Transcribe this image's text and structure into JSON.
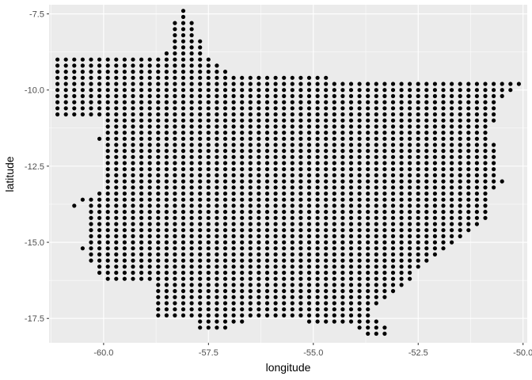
{
  "chart_data": {
    "type": "scatter",
    "xlabel": "longitude",
    "ylabel": "latitude",
    "xlim": [
      -61.3,
      -49.9
    ],
    "ylim": [
      -18.3,
      -7.2
    ],
    "x_ticks": [
      -60.0,
      -57.5,
      -55.0,
      -52.5,
      -50.0
    ],
    "x_tick_labels": [
      "-60.0",
      "-57.5",
      "-55.0",
      "-52.5",
      "-50.0"
    ],
    "y_ticks": [
      -7.5,
      -10.0,
      -12.5,
      -15.0,
      -17.5
    ],
    "y_tick_labels": [
      "-7.5",
      "-10.0",
      "-12.5",
      "-15.0",
      "-17.5"
    ],
    "grid": true,
    "panel_background": "#ebebeb",
    "grid_color": "#ffffff",
    "point_color": "#000000",
    "grid_step": 0.2,
    "rows": [
      {
        "lat": -7.4,
        "spans": [
          [
            -58.1,
            -58.1
          ]
        ]
      },
      {
        "lat": -7.6,
        "spans": [
          [
            -58.1,
            -58.1
          ]
        ]
      },
      {
        "lat": -7.8,
        "spans": [
          [
            -58.3,
            -57.9
          ]
        ]
      },
      {
        "lat": -8.0,
        "spans": [
          [
            -58.3,
            -57.9
          ]
        ]
      },
      {
        "lat": -8.2,
        "spans": [
          [
            -58.3,
            -57.9
          ]
        ]
      },
      {
        "lat": -8.4,
        "spans": [
          [
            -58.3,
            -57.7
          ]
        ]
      },
      {
        "lat": -8.6,
        "spans": [
          [
            -58.3,
            -57.7
          ]
        ]
      },
      {
        "lat": -8.8,
        "spans": [
          [
            -58.5,
            -57.7
          ]
        ]
      },
      {
        "lat": -9.0,
        "spans": [
          [
            -61.1,
            -57.5
          ]
        ]
      },
      {
        "lat": -9.2,
        "spans": [
          [
            -61.1,
            -57.3
          ]
        ]
      },
      {
        "lat": -9.4,
        "spans": [
          [
            -61.1,
            -57.1
          ]
        ]
      },
      {
        "lat": -9.6,
        "spans": [
          [
            -61.1,
            -54.7
          ]
        ]
      },
      {
        "lat": -9.8,
        "spans": [
          [
            -61.1,
            -50.1
          ]
        ]
      },
      {
        "lat": -10.0,
        "spans": [
          [
            -61.1,
            -50.3
          ]
        ]
      },
      {
        "lat": -10.2,
        "spans": [
          [
            -61.1,
            -50.5
          ]
        ]
      },
      {
        "lat": -10.4,
        "spans": [
          [
            -61.1,
            -50.7
          ]
        ]
      },
      {
        "lat": -10.6,
        "spans": [
          [
            -61.1,
            -50.7
          ]
        ]
      },
      {
        "lat": -10.8,
        "spans": [
          [
            -61.1,
            -50.7
          ]
        ]
      },
      {
        "lat": -11.0,
        "spans": [
          [
            -59.9,
            -50.7
          ]
        ]
      },
      {
        "lat": -11.2,
        "spans": [
          [
            -59.9,
            -50.9
          ]
        ]
      },
      {
        "lat": -11.4,
        "spans": [
          [
            -59.9,
            -50.9
          ]
        ]
      },
      {
        "lat": -11.6,
        "spans": [
          [
            -60.1,
            -50.9
          ]
        ]
      },
      {
        "lat": -11.8,
        "spans": [
          [
            -59.9,
            -50.7
          ]
        ]
      },
      {
        "lat": -12.0,
        "spans": [
          [
            -59.9,
            -50.7
          ]
        ]
      },
      {
        "lat": -12.2,
        "spans": [
          [
            -59.9,
            -50.7
          ]
        ]
      },
      {
        "lat": -12.4,
        "spans": [
          [
            -59.9,
            -50.7
          ]
        ]
      },
      {
        "lat": -12.6,
        "spans": [
          [
            -59.9,
            -50.7
          ]
        ]
      },
      {
        "lat": -12.8,
        "spans": [
          [
            -59.9,
            -50.7
          ]
        ]
      },
      {
        "lat": -13.0,
        "spans": [
          [
            -59.9,
            -50.5
          ]
        ]
      },
      {
        "lat": -13.2,
        "spans": [
          [
            -59.9,
            -50.7
          ]
        ]
      },
      {
        "lat": -13.4,
        "spans": [
          [
            -60.1,
            -50.9
          ]
        ]
      },
      {
        "lat": -13.6,
        "spans": [
          [
            -60.5,
            -50.9
          ]
        ]
      },
      {
        "lat": -13.8,
        "spans": [
          [
            -60.7,
            -60.7
          ],
          [
            -60.3,
            -50.9
          ]
        ]
      },
      {
        "lat": -14.0,
        "spans": [
          [
            -60.3,
            -50.9
          ]
        ]
      },
      {
        "lat": -14.2,
        "spans": [
          [
            -60.3,
            -50.9
          ]
        ]
      },
      {
        "lat": -14.4,
        "spans": [
          [
            -60.3,
            -51.1
          ]
        ]
      },
      {
        "lat": -14.6,
        "spans": [
          [
            -60.3,
            -51.3
          ]
        ]
      },
      {
        "lat": -14.8,
        "spans": [
          [
            -60.3,
            -51.5
          ]
        ]
      },
      {
        "lat": -15.0,
        "spans": [
          [
            -60.3,
            -51.7
          ]
        ]
      },
      {
        "lat": -15.2,
        "spans": [
          [
            -60.5,
            -51.9
          ]
        ]
      },
      {
        "lat": -15.4,
        "spans": [
          [
            -60.3,
            -52.1
          ]
        ]
      },
      {
        "lat": -15.6,
        "spans": [
          [
            -60.3,
            -52.3
          ]
        ]
      },
      {
        "lat": -15.8,
        "spans": [
          [
            -60.1,
            -52.5
          ]
        ]
      },
      {
        "lat": -16.0,
        "spans": [
          [
            -60.1,
            -52.7
          ]
        ]
      },
      {
        "lat": -16.2,
        "spans": [
          [
            -59.9,
            -52.7
          ]
        ]
      },
      {
        "lat": -16.4,
        "spans": [
          [
            -58.7,
            -52.9
          ]
        ]
      },
      {
        "lat": -16.6,
        "spans": [
          [
            -58.7,
            -53.1
          ]
        ]
      },
      {
        "lat": -16.8,
        "spans": [
          [
            -58.7,
            -53.3
          ]
        ]
      },
      {
        "lat": -17.0,
        "spans": [
          [
            -58.7,
            -53.5
          ]
        ]
      },
      {
        "lat": -17.2,
        "spans": [
          [
            -58.7,
            -53.7
          ]
        ]
      },
      {
        "lat": -17.4,
        "spans": [
          [
            -58.7,
            -53.7
          ]
        ]
      },
      {
        "lat": -17.6,
        "spans": [
          [
            -57.7,
            -56.7
          ],
          [
            -55.1,
            -54.1
          ],
          [
            -53.9,
            -53.5
          ]
        ]
      },
      {
        "lat": -17.8,
        "spans": [
          [
            -57.7,
            -57.1
          ],
          [
            -53.9,
            -53.3
          ]
        ]
      },
      {
        "lat": -18.0,
        "spans": [
          [
            -53.7,
            -53.3
          ]
        ]
      }
    ]
  }
}
